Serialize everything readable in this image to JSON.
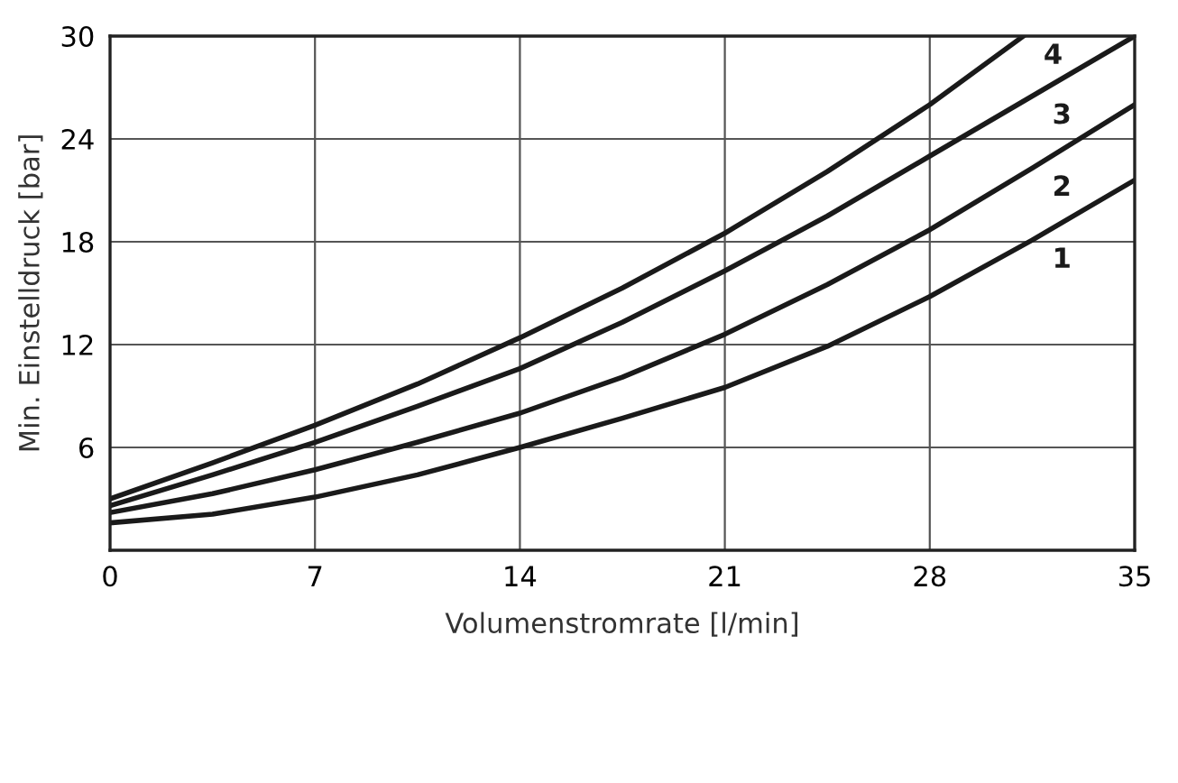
{
  "chart_data": {
    "type": "line",
    "xlabel": "Volumenstromrate [l/min]",
    "ylabel": "Min. Einstelldruck [bar]",
    "xlim": [
      0,
      35
    ],
    "ylim": [
      0,
      30
    ],
    "xticks": [
      0,
      7,
      14,
      21,
      28,
      35
    ],
    "yticks": [
      {
        "value": 0,
        "label": null
      },
      6,
      12,
      18,
      24,
      30
    ],
    "grid": true,
    "legend": false,
    "marker": "none",
    "line_style": "solid",
    "series": [
      {
        "name": "1",
        "color": "#1a1a1a",
        "x": [
          0,
          3.5,
          7,
          10.5,
          14,
          17.5,
          21,
          24.5,
          28,
          31.5,
          35
        ],
        "values": [
          1.6,
          2.1,
          3.1,
          4.4,
          6.0,
          7.7,
          9.5,
          11.9,
          14.8,
          18.1,
          21.6
        ]
      },
      {
        "name": "2",
        "color": "#1a1a1a",
        "x": [
          0,
          3.5,
          7,
          10.5,
          14,
          17.5,
          21,
          24.5,
          28,
          31.5,
          35
        ],
        "values": [
          2.2,
          3.3,
          4.7,
          6.3,
          8.0,
          10.1,
          12.6,
          15.5,
          18.7,
          22.3,
          26.0
        ]
      },
      {
        "name": "3",
        "color": "#1a1a1a",
        "x": [
          0,
          3.5,
          7,
          10.5,
          14,
          17.5,
          21,
          24.5,
          28,
          31.5,
          35
        ],
        "values": [
          2.6,
          4.4,
          6.3,
          8.4,
          10.6,
          13.3,
          16.3,
          19.5,
          23.0,
          26.5,
          30.0
        ]
      },
      {
        "name": "4",
        "color": "#1a1a1a",
        "x": [
          0,
          3.5,
          7,
          10.5,
          14,
          17.5,
          21,
          24.5,
          28,
          31.2
        ],
        "values": [
          3.0,
          5.1,
          7.3,
          9.7,
          12.4,
          15.3,
          18.5,
          22.1,
          26.0,
          30.0
        ]
      }
    ]
  }
}
